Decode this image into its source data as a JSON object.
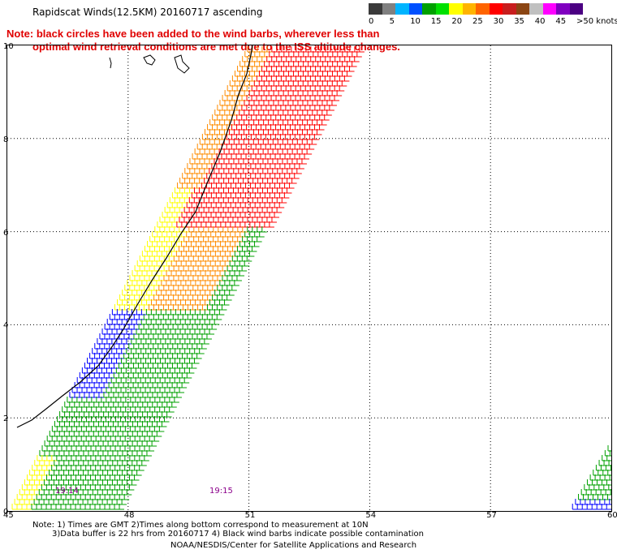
{
  "title": "Rapidscat Winds(12.5KM) 20160717 ascending",
  "note": {
    "line1": "Note: black circles have been added to the wind barbs, wherever less than",
    "line2": "optimal wind retrieval conditions are met due to the ISS altitude changes."
  },
  "scale": {
    "labels": [
      "0",
      "5",
      "10",
      "15",
      "20",
      "25",
      "30",
      "35",
      "40",
      "45",
      ">50 knots"
    ],
    "colors": [
      "#3a3a3a",
      "#808080",
      "#00b4ff",
      "#0050ff",
      "#00a000",
      "#00e000",
      "#ffff00",
      "#ffb400",
      "#ff6400",
      "#ff0000",
      "#c81e1e",
      "#8b4513",
      "#c0c0c0",
      "#ff00ff",
      "#8000c0",
      "#4b0082"
    ]
  },
  "axes": {
    "y_labels": [
      "10",
      "8",
      "6",
      "4",
      "2",
      "0"
    ],
    "x_labels": [
      "45",
      "48",
      "51",
      "54",
      "57",
      "60"
    ]
  },
  "times": [
    "19:14",
    "19:15"
  ],
  "footer": {
    "line1": "Note: 1) Times are GMT 2)Times along bottom correspond to measurement at 10N",
    "line2": "3)Data buffer is 22 hrs from 20160717 4) Black wind barbs indicate possible contamination",
    "credit": "NOAA/NESDIS/Center for Satellite Applications and Research"
  },
  "wind_colors": {
    "green": "#00a000",
    "blue": "#0000ff",
    "yellow": "#ffff00",
    "orange": "#ff8c00",
    "red": "#ff0000"
  }
}
